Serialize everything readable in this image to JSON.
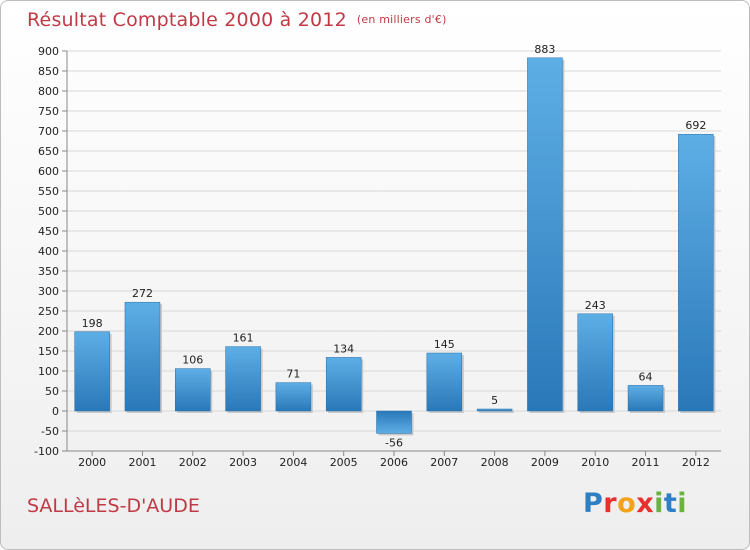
{
  "header": {
    "title": "Résultat Comptable 2000 à 2012",
    "subtitle": "(en milliers d'€)"
  },
  "footer": {
    "location": "SALLèLES-D'AUDE",
    "logo_letters": [
      "P",
      "r",
      "o",
      "x",
      "i",
      "t",
      "i"
    ],
    "logo_colors": [
      "#2e7fc4",
      "#e8312e",
      "#f2a21b",
      "#e8312e",
      "#6bb33e",
      "#2e7fc4",
      "#6bb33e"
    ]
  },
  "chart_data": {
    "type": "bar",
    "title": "Résultat Comptable 2000 à 2012",
    "subtitle": "(en milliers d'€)",
    "categories": [
      "2000",
      "2001",
      "2002",
      "2003",
      "2004",
      "2005",
      "2006",
      "2007",
      "2008",
      "2009",
      "2010",
      "2011",
      "2012"
    ],
    "values": [
      198,
      272,
      106,
      161,
      71,
      134,
      -56,
      145,
      5,
      883,
      243,
      64,
      692
    ],
    "data_labels": [
      "198",
      "272",
      "106",
      "161",
      "71",
      "134",
      "-56",
      "145",
      "5",
      "883",
      "243",
      "64",
      "692"
    ],
    "yticks": [
      "-100",
      "-50",
      "0",
      "50",
      "100",
      "150",
      "200",
      "250",
      "300",
      "350",
      "400",
      "450",
      "500",
      "550",
      "600",
      "650",
      "700",
      "750",
      "800",
      "850",
      "900"
    ],
    "ylim": [
      -100,
      900
    ],
    "grid": true,
    "bar_color": "#3a8fd2"
  }
}
